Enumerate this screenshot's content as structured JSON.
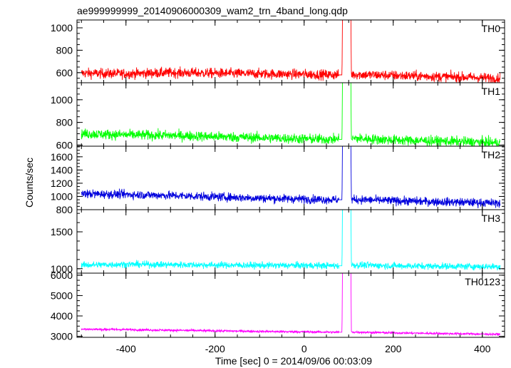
{
  "window": {
    "title": "ae999999999_20140906000309_wam2_trn_4band_long.qdp"
  },
  "chart_data": {
    "type": "line",
    "title": "ae999999999_20140906000309_wam2_trn_4band_long.qdp",
    "xlabel": "Time [sec] 0 = 2014/09/06 00:03:09",
    "ylabel": "Counts/sec",
    "xlim": [
      -510,
      450
    ],
    "xticks": [
      -400,
      -200,
      0,
      200,
      400
    ],
    "grid": false,
    "legend": "none",
    "panels": [
      {
        "name": "TH0",
        "color": "#ff0000",
        "ylim": [
          510,
          1070
        ],
        "yticks": [
          600,
          800,
          1000
        ],
        "x": [
          -500,
          -400,
          -300,
          -200,
          -100,
          0,
          80,
          85,
          86,
          100,
          105,
          106,
          200,
          300,
          400,
          430
        ],
        "y": [
          595,
          590,
          600,
          595,
          590,
          585,
          580,
          580,
          1070,
          1070,
          1070,
          585,
          575,
          565,
          555,
          550
        ]
      },
      {
        "name": "TH1",
        "color": "#00ff00",
        "ylim": [
          590,
          1150
        ],
        "yticks": [
          600,
          800,
          1000
        ],
        "x": [
          -500,
          -400,
          -300,
          -200,
          -100,
          0,
          80,
          85,
          86,
          100,
          105,
          106,
          200,
          300,
          400,
          430
        ],
        "y": [
          700,
          690,
          685,
          675,
          665,
          655,
          650,
          650,
          1150,
          1150,
          1150,
          660,
          645,
          635,
          625,
          620
        ]
      },
      {
        "name": "TH2",
        "color": "#0000dd",
        "ylim": [
          800,
          1760
        ],
        "yticks": [
          800,
          1000,
          1200,
          1400,
          1600
        ],
        "x": [
          -500,
          -400,
          -300,
          -200,
          -100,
          0,
          80,
          85,
          86,
          100,
          105,
          106,
          200,
          300,
          400,
          430
        ],
        "y": [
          1040,
          1030,
          1015,
          995,
          975,
          960,
          950,
          950,
          1760,
          1760,
          1760,
          955,
          935,
          920,
          905,
          900
        ]
      },
      {
        "name": "TH3",
        "color": "#00ffff",
        "ylim": [
          940,
          1800
        ],
        "yticks": [
          1000,
          1500
        ],
        "x": [
          -500,
          -400,
          -300,
          -200,
          -100,
          0,
          80,
          85,
          86,
          100,
          105,
          106,
          200,
          300,
          400,
          430
        ],
        "y": [
          1050,
          1060,
          1055,
          1050,
          1045,
          1045,
          1040,
          1040,
          1800,
          1800,
          1800,
          1050,
          1040,
          1035,
          1030,
          1030
        ]
      },
      {
        "name": "TH0123",
        "color": "#ff00ff",
        "ylim": [
          2950,
          6100
        ],
        "yticks": [
          3000,
          4000,
          5000,
          6000
        ],
        "x": [
          -500,
          -400,
          -300,
          -200,
          -100,
          0,
          80,
          85,
          86,
          100,
          105,
          106,
          200,
          300,
          400,
          430
        ],
        "y": [
          3350,
          3330,
          3300,
          3270,
          3240,
          3220,
          3200,
          3200,
          6100,
          6100,
          6100,
          3210,
          3170,
          3140,
          3110,
          3100
        ]
      }
    ]
  }
}
